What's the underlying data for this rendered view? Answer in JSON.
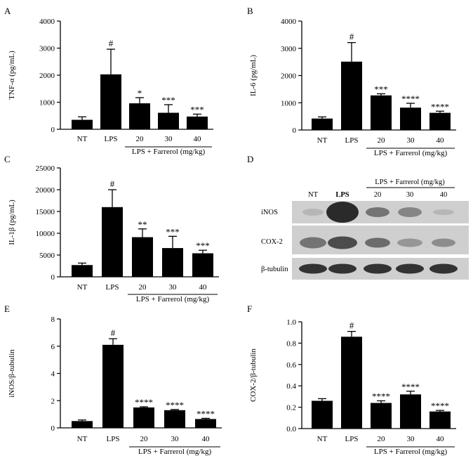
{
  "chart_data": [
    {
      "panel": "A",
      "type": "bar",
      "ylabel": "TNF-α (pg/mL)",
      "categories": [
        "NT",
        "LPS",
        "20",
        "30",
        "40"
      ],
      "values": [
        350,
        2030,
        960,
        610,
        470
      ],
      "errors": [
        110,
        930,
        210,
        300,
        90
      ],
      "significance": [
        "",
        "#",
        "*",
        "***",
        "***"
      ],
      "ylim": [
        0,
        4000
      ],
      "yticks": [
        "0",
        "1000",
        "2000",
        "3000",
        "4000"
      ],
      "treatment_label": "LPS + Farrerol (mg/kg)"
    },
    {
      "panel": "B",
      "type": "bar",
      "ylabel": "IL-6 (pg/mL)",
      "categories": [
        "NT",
        "LPS",
        "20",
        "30",
        "40"
      ],
      "values": [
        420,
        2510,
        1270,
        820,
        630
      ],
      "errors": [
        60,
        700,
        60,
        160,
        60
      ],
      "significance": [
        "",
        "#",
        "***",
        "****",
        "****"
      ],
      "ylim": [
        0,
        4000
      ],
      "yticks": [
        "0",
        "1000",
        "2000",
        "3000",
        "4000"
      ],
      "treatment_label": "LPS + Farrerol (mg/kg)"
    },
    {
      "panel": "C",
      "type": "bar",
      "ylabel": "IL-1β (pg/mL)",
      "categories": [
        "NT",
        "LPS",
        "20",
        "30",
        "40"
      ],
      "values": [
        2700,
        16000,
        9100,
        6600,
        5400
      ],
      "errors": [
        450,
        4000,
        1900,
        2700,
        700
      ],
      "significance": [
        "",
        "#",
        "**",
        "***",
        "***"
      ],
      "ylim": [
        0,
        25000
      ],
      "yticks": [
        "0",
        "5000",
        "10000",
        "15000",
        "20000",
        "25000"
      ],
      "treatment_label": "LPS + Farrerol (mg/kg)"
    },
    {
      "panel": "E",
      "type": "bar",
      "ylabel": "iNOS/β-tubulin",
      "categories": [
        "NT",
        "LPS",
        "20",
        "30",
        "40"
      ],
      "values": [
        0.5,
        6.1,
        1.5,
        1.3,
        0.65
      ],
      "errors": [
        0.08,
        0.45,
        0.05,
        0.05,
        0.05
      ],
      "significance": [
        "",
        "#",
        "****",
        "****",
        "****"
      ],
      "ylim": [
        0,
        8
      ],
      "yticks": [
        "0",
        "2",
        "4",
        "6",
        "8"
      ],
      "treatment_label": "LPS + Farrerol (mg/kg)"
    },
    {
      "panel": "F",
      "type": "bar",
      "ylabel": "COX-2/β-tubulin",
      "categories": [
        "NT",
        "LPS",
        "20",
        "30",
        "40"
      ],
      "values": [
        0.26,
        0.86,
        0.24,
        0.32,
        0.16
      ],
      "errors": [
        0.02,
        0.05,
        0.02,
        0.03,
        0.01
      ],
      "significance": [
        "",
        "#",
        "****",
        "****",
        "****"
      ],
      "ylim": [
        0,
        1.0
      ],
      "yticks": [
        "0.0",
        "0.2",
        "0.4",
        "0.6",
        "0.8",
        "1.0"
      ],
      "treatment_label": "LPS + Farrerol (mg/kg)"
    }
  ],
  "blot": {
    "panel": "D",
    "header": "LPS + Farrerol (mg/kg)",
    "lanes": [
      "NT",
      "LPS",
      "20",
      "30",
      "40"
    ],
    "rows": [
      "iNOS",
      "COX-2",
      "β-tubulin"
    ],
    "band_color": "#2a2a2a",
    "background_color": "#cfcfcf"
  },
  "bar_color": "#000000"
}
